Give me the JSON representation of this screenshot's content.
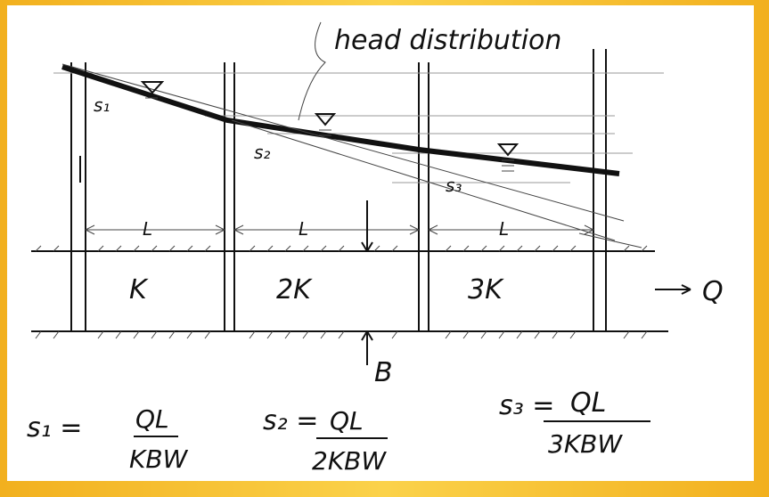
{
  "annotation": "head distribution",
  "layers": [
    {
      "conductivity": "K",
      "length": "L",
      "drop": "s₁"
    },
    {
      "conductivity": "2K",
      "length": "L",
      "drop": "s₂"
    },
    {
      "conductivity": "3K",
      "length": "L",
      "drop": "s₃"
    }
  ],
  "flow": "Q",
  "thickness": "B",
  "equations": [
    {
      "lhs": "s₁ =",
      "numerator": "QL",
      "denominator": "KBW"
    },
    {
      "lhs": "s₂ =",
      "numerator": "QL",
      "denominator": "2KBW"
    },
    {
      "lhs": "s₃ =",
      "numerator": "QL",
      "denominator": "3KBW"
    }
  ]
}
